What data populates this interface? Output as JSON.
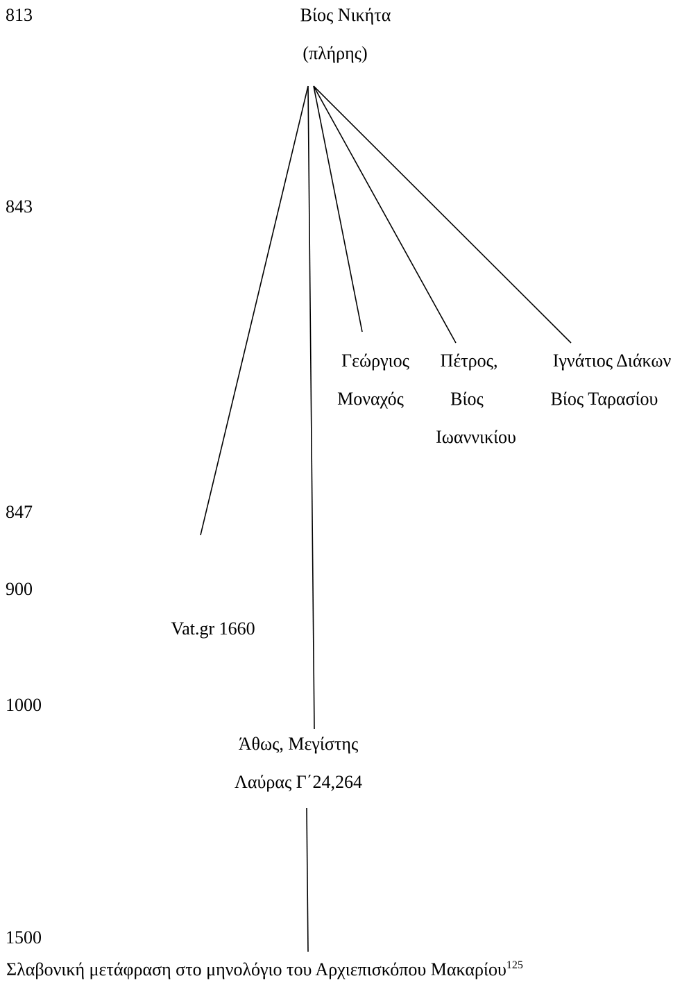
{
  "years": [
    "813",
    "843",
    "847",
    "900",
    "1000",
    "1500"
  ],
  "root": {
    "line1": "Βίος Νικήτα",
    "line2": "(πλήρης)"
  },
  "georgios": {
    "line1": "Γεώργιος",
    "line2": "Μοναχός"
  },
  "petros": {
    "line1": "Πέτρος,",
    "line2": "Βίος",
    "line3": "Ιωαννικίου"
  },
  "ignatios": {
    "line1": "Ιγνάτιος Διάκων",
    "line2": "Βίος Ταρασίου"
  },
  "vat": {
    "line1": "Vat.gr 1660"
  },
  "athos": {
    "line1": "Άθως, Μεγίστης",
    "line2": "Λαύρας Γ΄24,264"
  },
  "slavonic": {
    "text": "Σλαβονική μετάφραση  στο μηνολόγιο του Αρχιεπισκόπου Μακαρίου",
    "footnote": "125"
  }
}
